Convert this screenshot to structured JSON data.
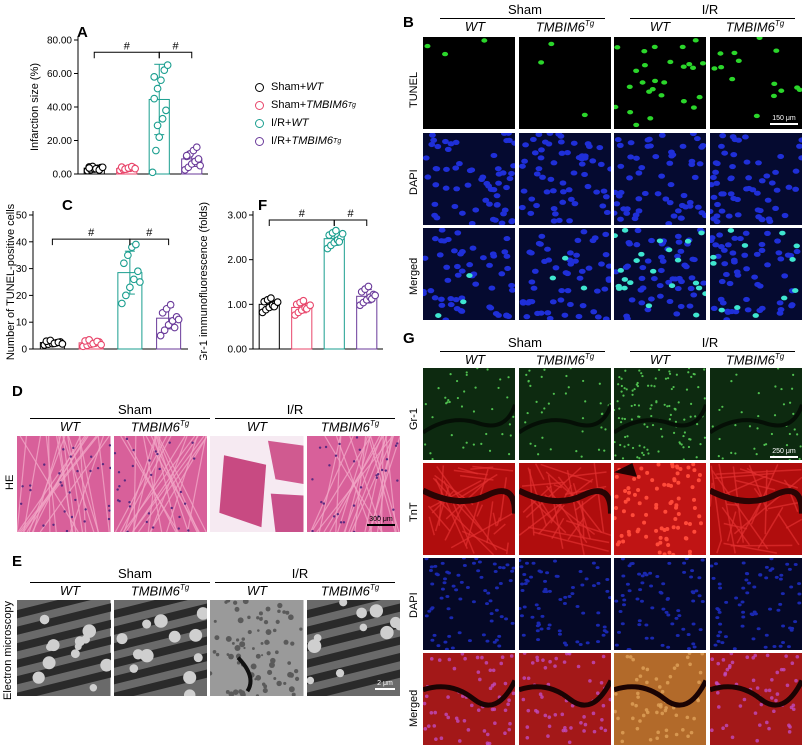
{
  "panels": {
    "A": "A",
    "B": "B",
    "C": "C",
    "D": "D",
    "E": "E",
    "F": "F",
    "G": "G"
  },
  "legend": [
    {
      "prefix": "Sham+",
      "italic": "WT",
      "sup": "",
      "color": "#000000"
    },
    {
      "prefix": "Sham+",
      "italic": "TMBIM6",
      "sup": "Tg",
      "color": "#e8456a"
    },
    {
      "prefix": "I/R+",
      "italic": "WT",
      "sup": "",
      "color": "#1a9e8f"
    },
    {
      "prefix": "I/R+",
      "italic": "TMBIM6",
      "sup": "Tg",
      "color": "#6a3a9a"
    }
  ],
  "headers": {
    "sham": "Sham",
    "ir": "I/R",
    "wt": "WT",
    "tg": "TMBIM6",
    "tg_sup": "Tg"
  },
  "panel_b_rows": [
    "TUNEL",
    "DAPI",
    "Merged"
  ],
  "panel_b_scale": "150 μm",
  "panel_g_rows": [
    "Gr-1",
    "TnT",
    "DAPI",
    "Merged"
  ],
  "panel_g_scale": "250 μm",
  "panel_d_row": "HE",
  "panel_d_scale": "300 μm",
  "panel_e_row": "Electron microscopy",
  "panel_e_scale": "2 μm",
  "chart_data": [
    {
      "panel": "A",
      "type": "bar",
      "categories": [
        "Sham+WT",
        "Sham+TMBIM6Tg",
        "I/R+WT",
        "I/R+TMBIM6Tg"
      ],
      "values": [
        3.5,
        3.3,
        44.5,
        9.0
      ],
      "sd": [
        1.2,
        1.0,
        21.0,
        4.5
      ],
      "points": [
        [
          2.0,
          2.6,
          3.0,
          3.4,
          3.8,
          4.2,
          4.5,
          3.1,
          2.4,
          4.0,
          3.6
        ],
        [
          2.2,
          2.7,
          3.0,
          3.4,
          3.8,
          4.1,
          2.9,
          3.6,
          4.4,
          3.2
        ],
        [
          1.0,
          14.0,
          22.0,
          33.0,
          38.0,
          45.0,
          51.0,
          56.0,
          62.0,
          65.0,
          58.0,
          29.0
        ],
        [
          2.5,
          4.0,
          6.0,
          7.5,
          9.0,
          10.5,
          12.0,
          14.0,
          16.0,
          5.0,
          11.0
        ]
      ],
      "ylabel": "Infarction size (%)",
      "yticks": [
        "0.00",
        "20.00",
        "40.00",
        "60.00",
        "80.00"
      ],
      "ylim": [
        0,
        80
      ],
      "sig": [
        "#",
        "#"
      ]
    },
    {
      "panel": "C",
      "type": "bar",
      "categories": [
        "Sham+WT",
        "Sham+TMBIM6Tg",
        "I/R+WT",
        "I/R+TMBIM6Tg"
      ],
      "values": [
        2.4,
        2.3,
        28.5,
        11.5
      ],
      "sd": [
        0.7,
        0.8,
        8.0,
        4.0
      ],
      "points": [
        [
          1.5,
          1.8,
          2.0,
          2.3,
          2.6,
          2.9,
          3.2,
          2.1,
          2.5,
          1.9
        ],
        [
          1.0,
          1.4,
          1.8,
          2.2,
          2.6,
          3.0,
          3.4,
          2.0,
          2.8,
          1.6
        ],
        [
          17.0,
          20.0,
          23.0,
          26.0,
          29.0,
          32.0,
          35.0,
          38.0,
          39.0,
          25.0
        ],
        [
          5.0,
          7.0,
          9.0,
          10.5,
          12.0,
          13.5,
          15.0,
          16.5,
          8.0,
          11.0
        ]
      ],
      "ylabel": "Number of TUNEL-positive cells",
      "yticks": [
        "0",
        "10",
        "20",
        "30",
        "40",
        "50"
      ],
      "ylim": [
        0,
        50
      ],
      "sig": [
        "#",
        "#"
      ]
    },
    {
      "panel": "F",
      "type": "bar",
      "categories": [
        "Sham+WT",
        "Sham+TMBIM6Tg",
        "I/R+WT",
        "I/R+TMBIM6Tg"
      ],
      "values": [
        1.0,
        0.93,
        2.47,
        1.18
      ],
      "sd": [
        0.12,
        0.12,
        0.15,
        0.15
      ],
      "points": [
        [
          0.82,
          0.88,
          0.93,
          0.98,
          1.02,
          1.06,
          1.1,
          1.14,
          0.95,
          1.05
        ],
        [
          0.76,
          0.82,
          0.87,
          0.92,
          0.96,
          1.0,
          1.04,
          1.08,
          0.9,
          0.98
        ],
        [
          2.25,
          2.32,
          2.38,
          2.44,
          2.5,
          2.55,
          2.6,
          2.65,
          2.4,
          2.58
        ],
        [
          0.98,
          1.04,
          1.1,
          1.16,
          1.22,
          1.28,
          1.34,
          1.4,
          1.12,
          1.2
        ]
      ],
      "ylabel": "Gr-1 immunofluorescence (folds)",
      "yticks": [
        "0.00",
        "1.00",
        "2.00",
        "3.00"
      ],
      "ylim": [
        0,
        3
      ],
      "sig": [
        "#",
        "#"
      ]
    }
  ],
  "colors": {
    "sham_wt": "#000000",
    "sham_tg": "#e8456a",
    "ir_wt": "#1a9e8f",
    "ir_tg": "#6a3a9a"
  }
}
